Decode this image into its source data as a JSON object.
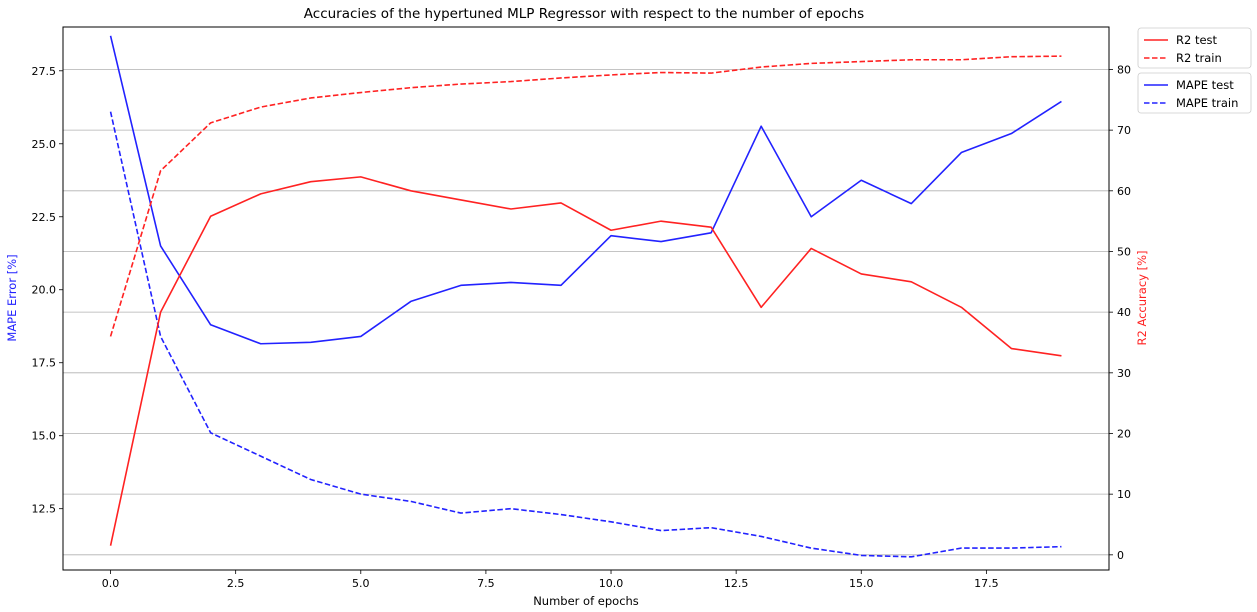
{
  "chart_data": {
    "type": "line",
    "title": "Accuracies of the hypertuned MLP Regressor with respect to the number of epochs",
    "xlabel": "Number of epochs",
    "ylabel_left": "MAPE Error [%]",
    "ylabel_right": "R2 Accuracy [%]",
    "xlim": [
      -0.95,
      19.95
    ],
    "ylim_left": [
      10.4,
      29.0
    ],
    "ylim_right": [
      -2.5,
      87.0
    ],
    "xticks": [
      0.0,
      2.5,
      5.0,
      7.5,
      10.0,
      12.5,
      15.0,
      17.5
    ],
    "xtick_labels": [
      "0.0",
      "2.5",
      "5.0",
      "7.5",
      "10.0",
      "12.5",
      "15.0",
      "17.5"
    ],
    "yticks_left": [
      12.5,
      15.0,
      17.5,
      20.0,
      22.5,
      25.0,
      27.5
    ],
    "ytick_labels_left": [
      "12.5",
      "15.0",
      "17.5",
      "20.0",
      "22.5",
      "25.0",
      "27.5"
    ],
    "yticks_right": [
      0,
      10,
      20,
      30,
      40,
      50,
      60,
      70,
      80
    ],
    "ytick_labels_right": [
      "0",
      "10",
      "20",
      "30",
      "40",
      "50",
      "60",
      "70",
      "80"
    ],
    "grid": "horizontal lines at right-axis ticks",
    "x": [
      0,
      1,
      2,
      3,
      4,
      5,
      6,
      7,
      8,
      9,
      10,
      11,
      12,
      13,
      14,
      15,
      16,
      17,
      18,
      19
    ],
    "series": [
      {
        "name": "R2 test",
        "axis": "right",
        "color": "#ff2222",
        "dash": "solid",
        "values": [
          1.5,
          40.0,
          55.8,
          59.5,
          61.5,
          62.3,
          60.0,
          58.5,
          57.0,
          58.0,
          53.5,
          55.0,
          54.0,
          40.8,
          50.5,
          46.3,
          45.0,
          40.8,
          34.0,
          32.8
        ]
      },
      {
        "name": "R2 train",
        "axis": "right",
        "color": "#ff2222",
        "dash": "dashed",
        "values": [
          36.0,
          63.3,
          71.2,
          73.8,
          75.3,
          76.2,
          77.0,
          77.6,
          78.0,
          78.6,
          79.1,
          79.5,
          79.4,
          80.4,
          81.0,
          81.3,
          81.6,
          81.6,
          82.1,
          82.2
        ]
      },
      {
        "name": "MAPE test",
        "axis": "left",
        "color": "#2222ff",
        "dash": "solid",
        "values": [
          28.7,
          21.5,
          18.8,
          18.15,
          18.2,
          18.4,
          19.6,
          20.15,
          20.25,
          20.15,
          21.85,
          21.65,
          21.95,
          25.6,
          22.5,
          23.75,
          22.95,
          24.7,
          25.35,
          26.45
        ]
      },
      {
        "name": "MAPE train",
        "axis": "left",
        "color": "#2222ff",
        "dash": "dashed",
        "values": [
          26.1,
          18.4,
          15.1,
          14.3,
          13.5,
          13.0,
          12.75,
          12.35,
          12.5,
          12.3,
          12.05,
          11.75,
          11.85,
          11.55,
          11.15,
          10.9,
          10.85,
          11.15,
          11.15,
          11.2
        ]
      }
    ],
    "legends": [
      {
        "position": "outside-right-top",
        "entries": [
          "R2 test",
          "R2 train"
        ]
      },
      {
        "position": "outside-right",
        "entries": [
          "MAPE test",
          "MAPE train"
        ]
      }
    ]
  }
}
